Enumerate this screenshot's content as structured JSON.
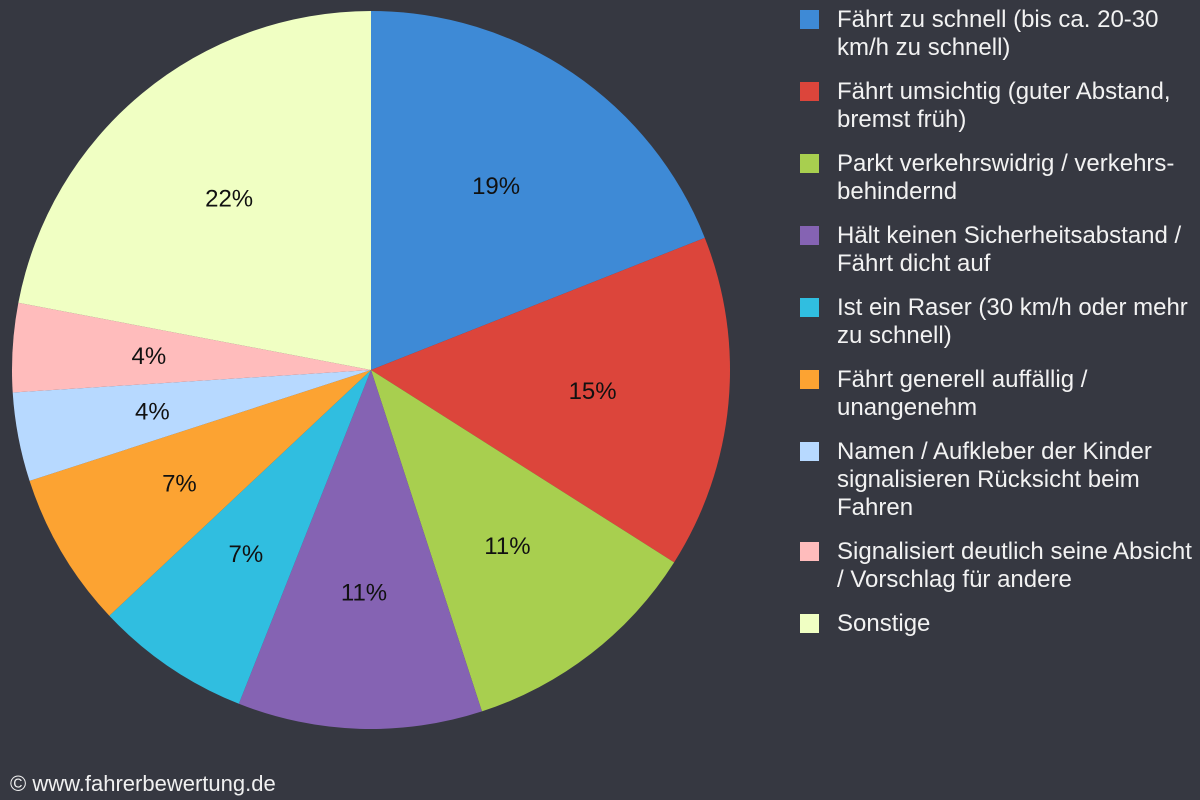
{
  "chart_data": {
    "type": "pie",
    "title": "",
    "labels": [
      "Fährt zu schnell (bis ca. 20-30 km/h zu schnell)",
      "Fährt umsichtig (guter Abstand, bremst früh)",
      "Parkt verkehrswidrig / verkehrs-behindernd",
      "Hält keinen Sicherheitsabstand / Fährt dicht auf",
      "Ist ein Raser (30 km/h oder mehr zu schnell)",
      "Fährt generell auffällig / unangenehm",
      "Namen / Aufkleber der Kinder signalisieren Rücksicht beim Fahren",
      "Signalisiert deutlich seine Absicht / Vorschlag für andere",
      "Sonstige"
    ],
    "values": [
      19,
      15,
      11,
      11,
      7,
      7,
      4,
      4,
      22
    ],
    "value_labels": [
      "19%",
      "15%",
      "11%",
      "11%",
      "7%",
      "7%",
      "4%",
      "4%",
      "22%"
    ],
    "colors": [
      "#3e8ad6",
      "#dc453b",
      "#a8cf4f",
      "#8563b3",
      "#30bee0",
      "#fca332",
      "#b7d9ff",
      "#ffbcbc",
      "#f0ffc3"
    ],
    "legend_position": "right",
    "start_angle": "top, clockwise"
  },
  "footer": {
    "copyright": "© www.fahrerbewertung.de"
  }
}
